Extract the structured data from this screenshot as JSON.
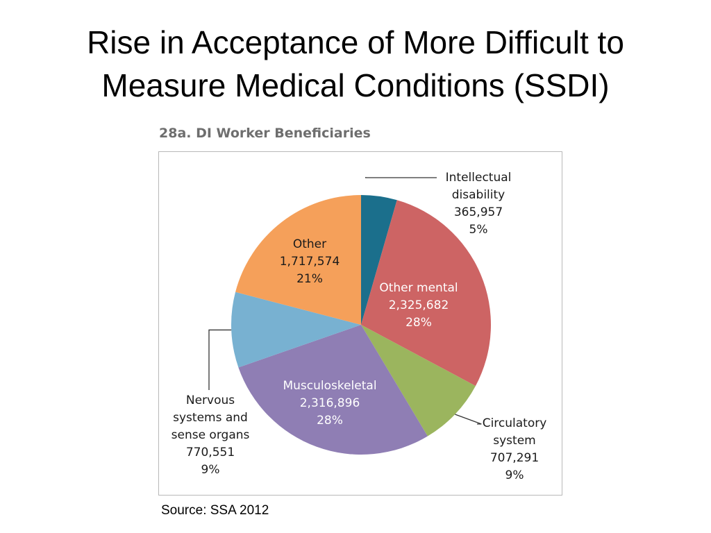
{
  "slide": {
    "title_line1": "Rise in Acceptance of More Difficult to",
    "title_line2": "Measure Medical Conditions (SSDI)",
    "source": "Source:  SSA 2012"
  },
  "chart_data": {
    "type": "pie",
    "title": "28a. DI Worker Beneficiaries",
    "slices": [
      {
        "label": [
          "Intellectual",
          "disability"
        ],
        "value": 365957,
        "value_label": "365,957",
        "percent_label": "5%",
        "color": "#1b6f8c",
        "label_position": "outside"
      },
      {
        "label": [
          "Other mental"
        ],
        "value": 2325682,
        "value_label": "2,325,682",
        "percent_label": "28%",
        "color": "#cd6464",
        "label_position": "inside"
      },
      {
        "label": [
          "Circulatory",
          "system"
        ],
        "value": 707291,
        "value_label": "707,291",
        "percent_label": "9%",
        "color": "#9bb55e",
        "label_position": "outside"
      },
      {
        "label": [
          "Musculoskeletal"
        ],
        "value": 2316896,
        "value_label": "2,316,896",
        "percent_label": "28%",
        "color": "#8f7eb4",
        "label_position": "inside"
      },
      {
        "label": [
          "Nervous",
          "systems and",
          "sense organs"
        ],
        "value": 770551,
        "value_label": "770,551",
        "percent_label": "9%",
        "color": "#78b1d1",
        "label_position": "outside"
      },
      {
        "label": [
          "Other"
        ],
        "value": 1717574,
        "value_label": "1,717,574",
        "percent_label": "21%",
        "color": "#f5a05a",
        "label_position": "inside"
      }
    ]
  }
}
